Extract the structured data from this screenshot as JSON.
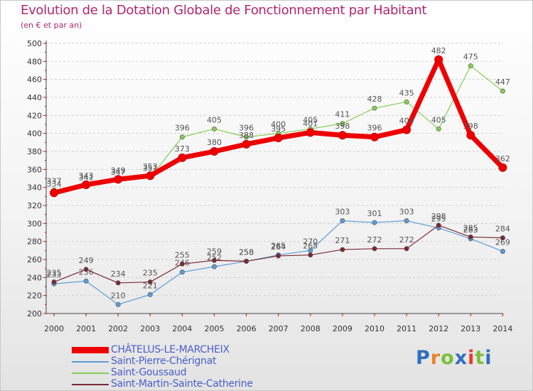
{
  "title": "Evolution de la Dotation Globale de Fonctionnement par Habitant",
  "subtitle": "(en € et par an)",
  "chart_data": {
    "type": "line",
    "title": "Evolution de la Dotation Globale de Fonctionnement par Habitant",
    "subtitle": "(en € et par an)",
    "xlabel": "",
    "ylabel": "",
    "x": [
      2000,
      2001,
      2002,
      2003,
      2004,
      2005,
      2006,
      2007,
      2008,
      2009,
      2010,
      2011,
      2012,
      2013,
      2014
    ],
    "ylim": [
      200,
      500
    ],
    "yticks": [
      200,
      220,
      240,
      260,
      280,
      300,
      320,
      340,
      360,
      380,
      400,
      420,
      440,
      460,
      480,
      500
    ],
    "grid": true,
    "legend": "bottom-left",
    "series": [
      {
        "name": "Saint-Goussaud",
        "color": "#88cc55",
        "values": [
          337,
          341,
          347,
          351,
          396,
          405,
          396,
          400,
          405,
          411,
          428,
          435,
          405,
          475,
          447
        ]
      },
      {
        "name": "Saint-Pierre-Chérignat",
        "color": "#5b9bd5",
        "values": [
          233,
          236,
          210,
          221,
          246,
          252,
          258,
          265,
          270,
          303,
          301,
          303,
          295,
          283,
          269
        ]
      },
      {
        "name": "Saint-Martin-Sainte-Catherine",
        "color": "#7b2a36",
        "values": [
          235,
          249,
          234,
          235,
          255,
          259,
          258,
          264,
          265,
          271,
          272,
          272,
          298,
          285,
          284
        ]
      },
      {
        "name": "CHÂTELUS-LE-MARCHEIX",
        "color": "#ee0000",
        "values": [
          334,
          343,
          349,
          353,
          373,
          380,
          388,
          395,
          401,
          398,
          396,
          404,
          482,
          398,
          362
        ]
      }
    ]
  },
  "legend_items": [
    {
      "label": "CHÂTELUS-LE-MARCHEIX",
      "color": "#ee0000"
    },
    {
      "label": "Saint-Pierre-Chérignat",
      "color": "#5b9bd5"
    },
    {
      "label": "Saint-Goussaud",
      "color": "#88cc55"
    },
    {
      "label": "Saint-Martin-Sainte-Catherine",
      "color": "#7b2a36"
    }
  ],
  "logo": {
    "letters": [
      "P",
      "r",
      "o",
      "x",
      "i",
      "t",
      "i"
    ],
    "colors": [
      "#2f6fbf",
      "#e8842a",
      "#7bbf3a",
      "#2f6fbf",
      "#e83a2a",
      "#7bbf3a",
      "#2f6fbf"
    ]
  }
}
